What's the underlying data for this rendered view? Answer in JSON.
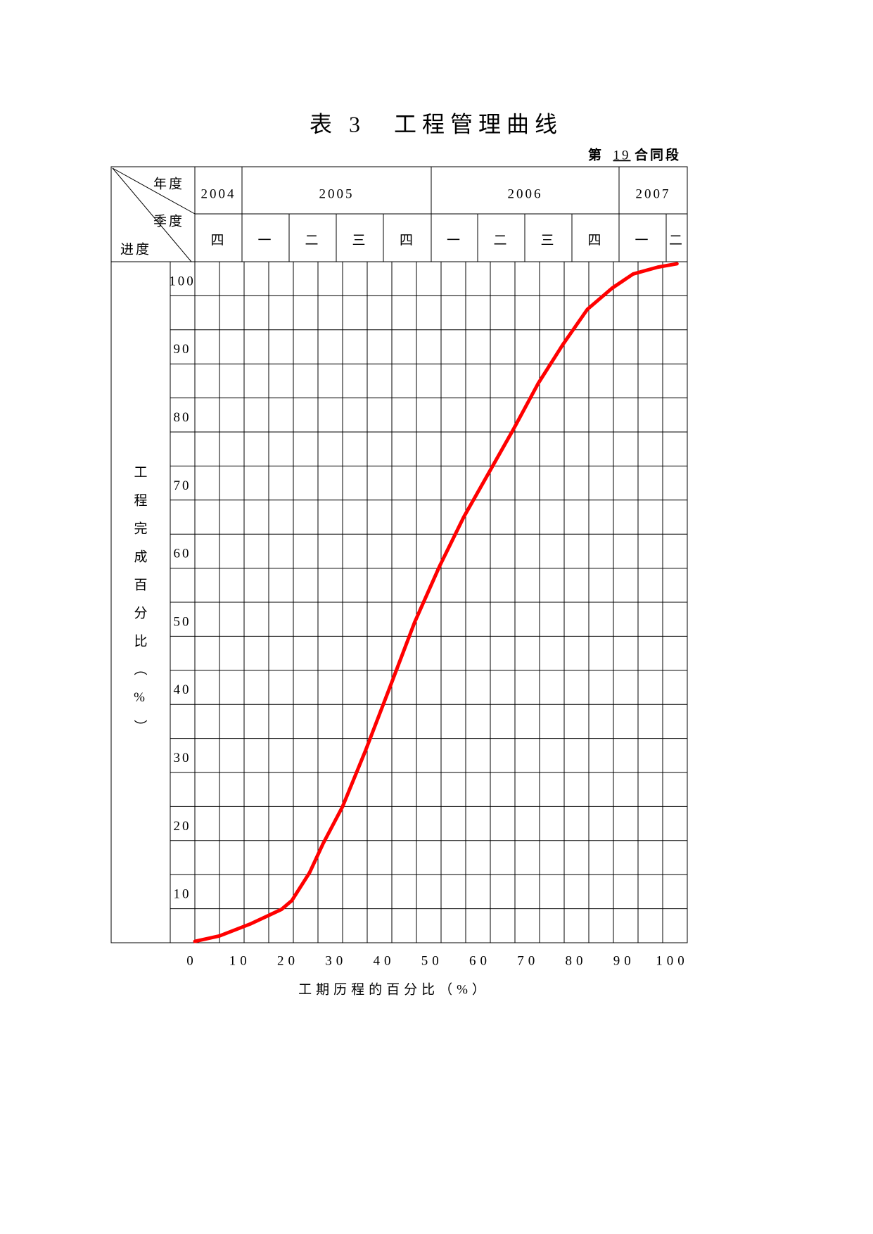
{
  "chart_data": {
    "type": "line",
    "title": "表 3　工程管理曲线",
    "contract": {
      "prefix": "第",
      "number": "19",
      "suffix": "合同段"
    },
    "header": {
      "year_label": "年度",
      "quarter_label": "季度",
      "progress_label": "进度",
      "years": [
        "2004",
        "2005",
        "2006",
        "2007"
      ],
      "quarters": [
        "四",
        "一",
        "二",
        "三",
        "四",
        "一",
        "二",
        "三",
        "四",
        "一",
        "二"
      ]
    },
    "ylabel": "工程完成百分比（%）",
    "xlabel": "工期历程的百分比（%）",
    "x": [
      0,
      5,
      11.4,
      17.6,
      19.7,
      23.3,
      26,
      30,
      34.7,
      39.7,
      44.6,
      49.7,
      54.6,
      60,
      64.7,
      69.7,
      74.7,
      79.7,
      84.7,
      89,
      94,
      97.9
    ],
    "values": [
      0.2,
      1,
      2.8,
      4.9,
      6.2,
      10.3,
      14.5,
      20,
      28.3,
      37.7,
      47,
      55.3,
      62.5,
      69.4,
      75.4,
      82.1,
      87.8,
      93,
      96.1,
      98.2,
      99.2,
      99.7
    ],
    "color": "#ff0000",
    "xlim": [
      0,
      100
    ],
    "ylim": [
      0,
      100
    ],
    "xticks": [
      0,
      10,
      20,
      30,
      40,
      50,
      60,
      70,
      80,
      90,
      100
    ],
    "yticks": [
      10,
      20,
      30,
      40,
      50,
      60,
      70,
      80,
      90,
      100
    ],
    "grid": true
  }
}
